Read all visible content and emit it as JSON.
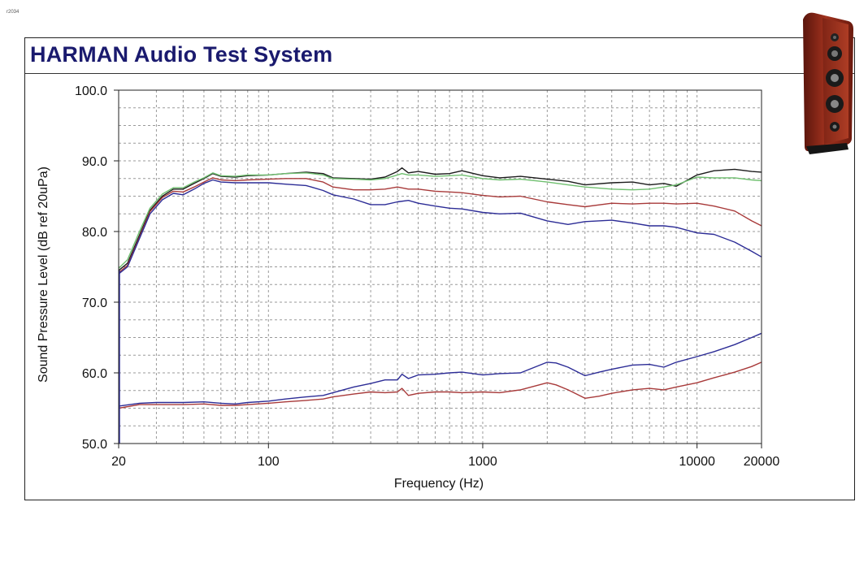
{
  "corner_code": "r2034",
  "title": "HARMAN Audio Test System",
  "colors": {
    "title": "#1a1a6e",
    "grid": "#9a9a9a",
    "black": "#1c1c1c",
    "green": "#6fbf6f",
    "red": "#a83a3a",
    "blue": "#2c2c96"
  },
  "image": {
    "icon": "floor-speaker-icon"
  },
  "chart_data": {
    "type": "line",
    "title": "HARMAN Audio Test System",
    "xlabel": "Frequency (Hz)",
    "ylabel": "Sound Pressure Level (dB ref 20uPa)",
    "xscale": "log",
    "xlim": [
      20,
      20000
    ],
    "ylim": [
      50,
      100
    ],
    "grid": true,
    "x_ticks": [
      {
        "value": 20,
        "label": "20"
      },
      {
        "value": 100,
        "label": "100"
      },
      {
        "value": 1000,
        "label": "1000"
      },
      {
        "value": 10000,
        "label": "10000"
      },
      {
        "value": 20000,
        "label": "20000"
      }
    ],
    "y_ticks": [
      {
        "value": 50,
        "label": "50.0"
      },
      {
        "value": 60,
        "label": "60.0"
      },
      {
        "value": 70,
        "label": "70.0"
      },
      {
        "value": 80,
        "label": "80.0"
      },
      {
        "value": 90,
        "label": "90.0"
      },
      {
        "value": 100,
        "label": "100.0"
      }
    ],
    "series": [
      {
        "color": "#1c1c1c",
        "points": [
          [
            20,
            74.5
          ],
          [
            22,
            75.5
          ],
          [
            25,
            79.5
          ],
          [
            28,
            83
          ],
          [
            32,
            85
          ],
          [
            36,
            86
          ],
          [
            40,
            86
          ],
          [
            45,
            86.8
          ],
          [
            50,
            87.5
          ],
          [
            55,
            88.2
          ],
          [
            60,
            87.8
          ],
          [
            70,
            87.7
          ],
          [
            80,
            87.9
          ],
          [
            100,
            88
          ],
          [
            120,
            88.2
          ],
          [
            150,
            88.4
          ],
          [
            180,
            88.2
          ],
          [
            200,
            87.6
          ],
          [
            250,
            87.5
          ],
          [
            300,
            87.4
          ],
          [
            350,
            87.7
          ],
          [
            400,
            88.5
          ],
          [
            420,
            89
          ],
          [
            450,
            88.3
          ],
          [
            500,
            88.5
          ],
          [
            600,
            88.1
          ],
          [
            700,
            88.2
          ],
          [
            800,
            88.6
          ],
          [
            1000,
            87.9
          ],
          [
            1200,
            87.6
          ],
          [
            1500,
            87.8
          ],
          [
            2000,
            87.4
          ],
          [
            2500,
            87.1
          ],
          [
            3000,
            86.6
          ],
          [
            4000,
            86.9
          ],
          [
            5000,
            87
          ],
          [
            6000,
            86.6
          ],
          [
            7000,
            86.8
          ],
          [
            8000,
            86.4
          ],
          [
            10000,
            88
          ],
          [
            12000,
            88.6
          ],
          [
            15000,
            88.8
          ],
          [
            18000,
            88.5
          ],
          [
            20000,
            88.4
          ]
        ]
      },
      {
        "color": "#6fbf6f",
        "points": [
          [
            20,
            74.8
          ],
          [
            22,
            76
          ],
          [
            25,
            80
          ],
          [
            28,
            83.3
          ],
          [
            32,
            85.3
          ],
          [
            36,
            86.2
          ],
          [
            40,
            86.2
          ],
          [
            45,
            87
          ],
          [
            50,
            87.6
          ],
          [
            55,
            88.3
          ],
          [
            60,
            87.9
          ],
          [
            70,
            87.8
          ],
          [
            80,
            88
          ],
          [
            100,
            88
          ],
          [
            120,
            88.2
          ],
          [
            150,
            88.3
          ],
          [
            180,
            88
          ],
          [
            200,
            87.5
          ],
          [
            250,
            87.4
          ],
          [
            300,
            87.3
          ],
          [
            350,
            87.5
          ],
          [
            400,
            88
          ],
          [
            420,
            88.2
          ],
          [
            450,
            88
          ],
          [
            500,
            88
          ],
          [
            600,
            87.8
          ],
          [
            700,
            87.9
          ],
          [
            800,
            88
          ],
          [
            1000,
            87.5
          ],
          [
            1200,
            87.3
          ],
          [
            1500,
            87.4
          ],
          [
            2000,
            87
          ],
          [
            2500,
            86.6
          ],
          [
            3000,
            86.3
          ],
          [
            4000,
            86
          ],
          [
            5000,
            85.9
          ],
          [
            6000,
            86
          ],
          [
            7000,
            86.3
          ],
          [
            8000,
            86.6
          ],
          [
            10000,
            87.7
          ],
          [
            12000,
            87.6
          ],
          [
            15000,
            87.6
          ],
          [
            18000,
            87.3
          ],
          [
            20000,
            87.2
          ]
        ]
      },
      {
        "color": "#a83a3a",
        "points": [
          [
            20,
            74.2
          ],
          [
            22,
            75.2
          ],
          [
            25,
            79.2
          ],
          [
            28,
            82.8
          ],
          [
            32,
            84.8
          ],
          [
            36,
            85.7
          ],
          [
            40,
            85.6
          ],
          [
            45,
            86.3
          ],
          [
            50,
            87
          ],
          [
            55,
            87.6
          ],
          [
            60,
            87.3
          ],
          [
            70,
            87.2
          ],
          [
            80,
            87.3
          ],
          [
            100,
            87.4
          ],
          [
            120,
            87.5
          ],
          [
            150,
            87.5
          ],
          [
            180,
            87
          ],
          [
            200,
            86.3
          ],
          [
            250,
            85.9
          ],
          [
            300,
            85.9
          ],
          [
            350,
            86
          ],
          [
            400,
            86.3
          ],
          [
            450,
            86
          ],
          [
            500,
            86
          ],
          [
            600,
            85.7
          ],
          [
            700,
            85.6
          ],
          [
            800,
            85.5
          ],
          [
            1000,
            85.1
          ],
          [
            1200,
            84.9
          ],
          [
            1500,
            85
          ],
          [
            2000,
            84.2
          ],
          [
            2500,
            83.8
          ],
          [
            3000,
            83.5
          ],
          [
            4000,
            84
          ],
          [
            5000,
            83.9
          ],
          [
            6000,
            84
          ],
          [
            7000,
            84
          ],
          [
            8000,
            83.9
          ],
          [
            10000,
            84
          ],
          [
            12000,
            83.6
          ],
          [
            15000,
            82.9
          ],
          [
            18000,
            81.5
          ],
          [
            20000,
            80.8
          ]
        ]
      },
      {
        "color": "#2c2c96",
        "points": [
          [
            20,
            74
          ],
          [
            22,
            75
          ],
          [
            25,
            79
          ],
          [
            28,
            82.5
          ],
          [
            32,
            84.5
          ],
          [
            36,
            85.4
          ],
          [
            40,
            85.2
          ],
          [
            45,
            86
          ],
          [
            50,
            86.8
          ],
          [
            55,
            87.3
          ],
          [
            60,
            87
          ],
          [
            70,
            86.9
          ],
          [
            80,
            86.9
          ],
          [
            100,
            86.9
          ],
          [
            120,
            86.7
          ],
          [
            150,
            86.5
          ],
          [
            180,
            85.8
          ],
          [
            200,
            85.2
          ],
          [
            250,
            84.6
          ],
          [
            300,
            83.8
          ],
          [
            350,
            83.8
          ],
          [
            400,
            84.2
          ],
          [
            450,
            84.4
          ],
          [
            500,
            84
          ],
          [
            600,
            83.6
          ],
          [
            700,
            83.3
          ],
          [
            800,
            83.2
          ],
          [
            1000,
            82.7
          ],
          [
            1200,
            82.5
          ],
          [
            1500,
            82.6
          ],
          [
            2000,
            81.5
          ],
          [
            2500,
            81
          ],
          [
            3000,
            81.4
          ],
          [
            4000,
            81.6
          ],
          [
            5000,
            81.2
          ],
          [
            6000,
            80.8
          ],
          [
            7000,
            80.8
          ],
          [
            8000,
            80.6
          ],
          [
            10000,
            79.8
          ],
          [
            12000,
            79.6
          ],
          [
            15000,
            78.5
          ],
          [
            18000,
            77.2
          ],
          [
            20000,
            76.4
          ]
        ]
      },
      {
        "color": "#2c2c96",
        "points": [
          [
            20,
            55.3
          ],
          [
            25,
            55.7
          ],
          [
            30,
            55.8
          ],
          [
            40,
            55.8
          ],
          [
            50,
            55.9
          ],
          [
            60,
            55.7
          ],
          [
            70,
            55.6
          ],
          [
            80,
            55.8
          ],
          [
            100,
            56
          ],
          [
            120,
            56.3
          ],
          [
            150,
            56.6
          ],
          [
            180,
            56.8
          ],
          [
            200,
            57.2
          ],
          [
            250,
            58
          ],
          [
            300,
            58.5
          ],
          [
            350,
            59
          ],
          [
            400,
            59
          ],
          [
            420,
            59.8
          ],
          [
            450,
            59.2
          ],
          [
            500,
            59.7
          ],
          [
            600,
            59.8
          ],
          [
            700,
            60
          ],
          [
            800,
            60.1
          ],
          [
            1000,
            59.7
          ],
          [
            1200,
            59.9
          ],
          [
            1500,
            60
          ],
          [
            2000,
            61.5
          ],
          [
            2200,
            61.4
          ],
          [
            2500,
            60.8
          ],
          [
            3000,
            59.6
          ],
          [
            3500,
            60.1
          ],
          [
            4000,
            60.5
          ],
          [
            5000,
            61.1
          ],
          [
            6000,
            61.2
          ],
          [
            7000,
            60.8
          ],
          [
            8000,
            61.5
          ],
          [
            10000,
            62.3
          ],
          [
            12000,
            63
          ],
          [
            15000,
            64
          ],
          [
            18000,
            65
          ],
          [
            20000,
            65.6
          ]
        ]
      },
      {
        "color": "#a83a3a",
        "points": [
          [
            20,
            55
          ],
          [
            25,
            55.5
          ],
          [
            30,
            55.5
          ],
          [
            40,
            55.5
          ],
          [
            50,
            55.6
          ],
          [
            60,
            55.4
          ],
          [
            70,
            55.4
          ],
          [
            80,
            55.5
          ],
          [
            100,
            55.7
          ],
          [
            120,
            55.9
          ],
          [
            150,
            56.1
          ],
          [
            180,
            56.3
          ],
          [
            200,
            56.6
          ],
          [
            250,
            57
          ],
          [
            300,
            57.3
          ],
          [
            350,
            57.2
          ],
          [
            400,
            57.3
          ],
          [
            420,
            57.8
          ],
          [
            450,
            56.8
          ],
          [
            500,
            57.1
          ],
          [
            600,
            57.3
          ],
          [
            700,
            57.3
          ],
          [
            800,
            57.2
          ],
          [
            1000,
            57.3
          ],
          [
            1200,
            57.2
          ],
          [
            1500,
            57.6
          ],
          [
            2000,
            58.6
          ],
          [
            2200,
            58.3
          ],
          [
            2500,
            57.6
          ],
          [
            3000,
            56.4
          ],
          [
            3500,
            56.7
          ],
          [
            4000,
            57.1
          ],
          [
            5000,
            57.6
          ],
          [
            6000,
            57.8
          ],
          [
            7000,
            57.6
          ],
          [
            8000,
            58
          ],
          [
            10000,
            58.6
          ],
          [
            12000,
            59.3
          ],
          [
            15000,
            60.1
          ],
          [
            18000,
            60.9
          ],
          [
            20000,
            61.5
          ]
        ]
      }
    ]
  }
}
